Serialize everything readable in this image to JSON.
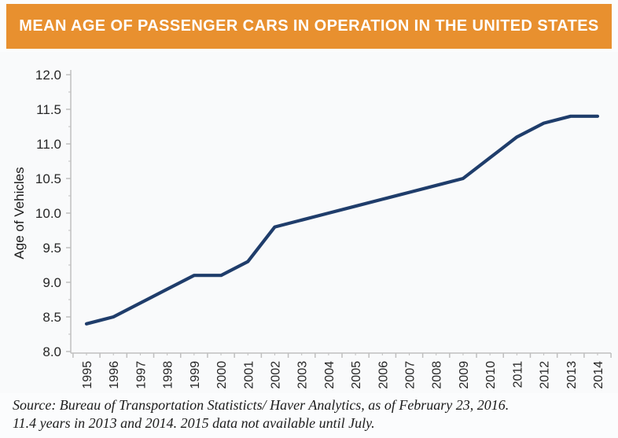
{
  "header": {
    "title": "MEAN AGE OF PASSENGER CARS IN OPERATION IN THE UNITED STATES",
    "bg_color": "#E8902F",
    "text_color": "#FFFFFF"
  },
  "chart_data": {
    "type": "line",
    "title": "MEAN AGE OF PASSENGER CARS IN OPERATION IN THE UNITED STATES",
    "xlabel": "",
    "ylabel": "Age of Vehicles",
    "categories": [
      "1995",
      "1996",
      "1997",
      "1998",
      "1999",
      "2000",
      "2001",
      "2002",
      "2003",
      "2004",
      "2005",
      "2006",
      "2007",
      "2008",
      "2009",
      "2010",
      "2011",
      "2012",
      "2013",
      "2014"
    ],
    "values": [
      8.4,
      8.5,
      8.7,
      8.9,
      9.1,
      9.1,
      9.3,
      9.8,
      9.9,
      10.0,
      10.1,
      10.2,
      10.3,
      10.4,
      10.5,
      10.8,
      11.1,
      11.3,
      11.4,
      11.4
    ],
    "ylim": [
      8.0,
      12.0
    ],
    "ytick_step": 0.5,
    "ytick_labels": [
      "8.0",
      "8.5",
      "9.0",
      "9.5",
      "10.0",
      "10.5",
      "11.0",
      "11.5",
      "12.0"
    ],
    "grid": false,
    "legend": "none",
    "line_color": "#1F3D6B",
    "axis_color": "#BFBFBF",
    "tick_label_color": "#262626"
  },
  "footer": {
    "line1": "Source: Bureau of Transportation Statisticts/ Haver Analytics, as of February 23, 2016.",
    "line2": "11.4 years in 2013 and 2014. 2015 data not available until July."
  }
}
